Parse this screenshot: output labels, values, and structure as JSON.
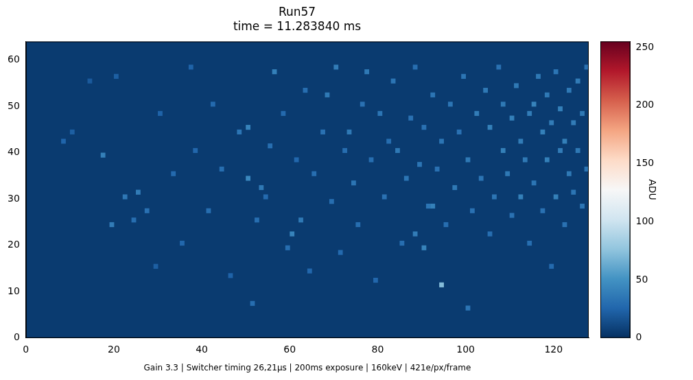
{
  "chart_data": {
    "type": "heatmap",
    "title": "Run57",
    "subtitle": "time = 11.283840 ms",
    "x_label": "Gain 3.3 | Switcher timing 26,21μs | 200ms exposure | 160keV | 421e/px/frame",
    "xlim": [
      0,
      128
    ],
    "xticks": [
      0,
      20,
      40,
      60,
      80,
      100,
      120
    ],
    "ylim": [
      0,
      64
    ],
    "yticks": [
      0,
      10,
      20,
      30,
      40,
      50,
      60
    ],
    "grid": false,
    "colorbar_label": "ADU",
    "colorbar_range": [
      0,
      255
    ],
    "colorbar_ticks": [
      0,
      50,
      100,
      150,
      200,
      250
    ],
    "background": 5,
    "cells": [
      [
        8,
        42,
        25
      ],
      [
        10,
        44,
        22
      ],
      [
        14,
        55,
        20
      ],
      [
        17,
        39,
        40
      ],
      [
        19,
        24,
        38
      ],
      [
        20,
        56,
        22
      ],
      [
        22,
        30,
        35
      ],
      [
        24,
        25,
        30
      ],
      [
        25,
        31,
        38
      ],
      [
        27,
        27,
        32
      ],
      [
        29,
        15,
        22
      ],
      [
        30,
        48,
        24
      ],
      [
        33,
        35,
        28
      ],
      [
        35,
        20,
        26
      ],
      [
        37,
        58,
        24
      ],
      [
        38,
        40,
        26
      ],
      [
        41,
        27,
        30
      ],
      [
        42,
        50,
        28
      ],
      [
        44,
        36,
        30
      ],
      [
        46,
        13,
        24
      ],
      [
        48,
        44,
        34
      ],
      [
        50,
        45,
        42
      ],
      [
        50,
        34,
        45
      ],
      [
        51,
        7,
        30
      ],
      [
        52,
        25,
        30
      ],
      [
        53,
        32,
        36
      ],
      [
        54,
        30,
        28
      ],
      [
        55,
        41,
        30
      ],
      [
        56,
        57,
        40
      ],
      [
        58,
        48,
        28
      ],
      [
        59,
        19,
        30
      ],
      [
        60,
        22,
        42
      ],
      [
        61,
        38,
        26
      ],
      [
        62,
        25,
        36
      ],
      [
        63,
        53,
        30
      ],
      [
        64,
        14,
        26
      ],
      [
        65,
        35,
        30
      ],
      [
        67,
        44,
        32
      ],
      [
        68,
        52,
        36
      ],
      [
        69,
        29,
        30
      ],
      [
        70,
        58,
        38
      ],
      [
        71,
        18,
        28
      ],
      [
        72,
        40,
        30
      ],
      [
        73,
        44,
        36
      ],
      [
        74,
        33,
        34
      ],
      [
        75,
        24,
        30
      ],
      [
        76,
        50,
        32
      ],
      [
        77,
        57,
        36
      ],
      [
        78,
        38,
        30
      ],
      [
        79,
        12,
        26
      ],
      [
        80,
        48,
        34
      ],
      [
        81,
        30,
        32
      ],
      [
        82,
        42,
        30
      ],
      [
        83,
        55,
        34
      ],
      [
        84,
        40,
        36
      ],
      [
        85,
        20,
        30
      ],
      [
        86,
        34,
        34
      ],
      [
        87,
        47,
        32
      ],
      [
        88,
        22,
        38
      ],
      [
        88,
        58,
        30
      ],
      [
        89,
        37,
        34
      ],
      [
        90,
        19,
        42
      ],
      [
        90,
        45,
        32
      ],
      [
        91,
        28,
        34
      ],
      [
        92,
        28,
        40
      ],
      [
        92,
        52,
        34
      ],
      [
        93,
        36,
        32
      ],
      [
        94,
        11,
        72
      ],
      [
        94,
        42,
        34
      ],
      [
        95,
        24,
        30
      ],
      [
        96,
        50,
        34
      ],
      [
        97,
        32,
        36
      ],
      [
        98,
        44,
        32
      ],
      [
        99,
        56,
        34
      ],
      [
        100,
        6,
        34
      ],
      [
        100,
        38,
        36
      ],
      [
        101,
        27,
        32
      ],
      [
        102,
        48,
        38
      ],
      [
        103,
        34,
        34
      ],
      [
        104,
        53,
        36
      ],
      [
        105,
        45,
        40
      ],
      [
        105,
        22,
        30
      ],
      [
        106,
        30,
        34
      ],
      [
        107,
        58,
        32
      ],
      [
        108,
        40,
        40
      ],
      [
        108,
        50,
        36
      ],
      [
        109,
        35,
        36
      ],
      [
        110,
        47,
        40
      ],
      [
        110,
        26,
        32
      ],
      [
        111,
        54,
        36
      ],
      [
        112,
        30,
        40
      ],
      [
        112,
        42,
        38
      ],
      [
        113,
        38,
        36
      ],
      [
        114,
        48,
        38
      ],
      [
        114,
        20,
        30
      ],
      [
        115,
        50,
        42
      ],
      [
        115,
        33,
        34
      ],
      [
        116,
        56,
        36
      ],
      [
        117,
        44,
        40
      ],
      [
        117,
        27,
        32
      ],
      [
        118,
        38,
        40
      ],
      [
        118,
        52,
        36
      ],
      [
        119,
        46,
        38
      ],
      [
        119,
        15,
        28
      ],
      [
        120,
        30,
        40
      ],
      [
        120,
        57,
        34
      ],
      [
        121,
        40,
        38
      ],
      [
        121,
        49,
        40
      ],
      [
        122,
        42,
        40
      ],
      [
        122,
        24,
        32
      ],
      [
        123,
        35,
        36
      ],
      [
        123,
        53,
        36
      ],
      [
        124,
        46,
        38
      ],
      [
        124,
        31,
        34
      ],
      [
        125,
        55,
        38
      ],
      [
        125,
        40,
        36
      ],
      [
        126,
        28,
        34
      ],
      [
        126,
        48,
        36
      ],
      [
        127,
        36,
        34
      ],
      [
        127,
        58,
        32
      ]
    ]
  }
}
